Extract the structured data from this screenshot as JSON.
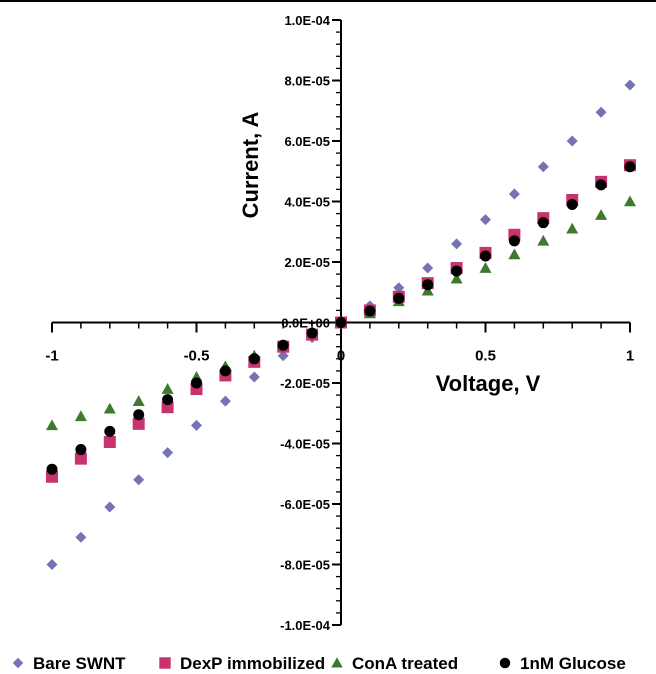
{
  "chart_data": {
    "type": "scatter",
    "xlabel": "Voltage, V",
    "ylabel": "Current, A",
    "xlim": [
      -1,
      1
    ],
    "ylim": [
      -0.0001,
      0.0001
    ],
    "x_tick_labels": [
      "-1",
      "-0.5",
      "0",
      "0.5",
      "1"
    ],
    "y_tick_labels": [
      "1.0E-04",
      "8.0E-05",
      "6.0E-05",
      "4.0E-05",
      "2.0E-05",
      "0.0E+00",
      "-2.0E-05",
      "-4.0E-05",
      "-6.0E-05",
      "-8.0E-05",
      "-1.0E-04"
    ],
    "legend_position": "bottom",
    "x": [
      -1,
      -0.9,
      -0.8,
      -0.7,
      -0.6,
      -0.5,
      -0.4,
      -0.3,
      -0.2,
      -0.1,
      0,
      0.1,
      0.2,
      0.3,
      0.4,
      0.5,
      0.6,
      0.7,
      0.8,
      0.9,
      1
    ],
    "series": [
      {
        "name": "Bare SWNT",
        "marker": "diamond",
        "color": "#7474b4",
        "values": [
          -8e-05,
          -7.1e-05,
          -6.1e-05,
          -5.2e-05,
          -4.3e-05,
          -3.4e-05,
          -2.6e-05,
          -1.8e-05,
          -1.1e-05,
          -5e-06,
          0,
          5.5e-06,
          1.15e-05,
          1.8e-05,
          2.6e-05,
          3.4e-05,
          4.25e-05,
          5.15e-05,
          6e-05,
          6.95e-05,
          7.85e-05
        ]
      },
      {
        "name": "DexP immobilized",
        "marker": "square",
        "color": "#c8326e",
        "values": [
          -5.1e-05,
          -4.5e-05,
          -3.95e-05,
          -3.35e-05,
          -2.8e-05,
          -2.2e-05,
          -1.75e-05,
          -1.3e-05,
          -8e-06,
          -4e-06,
          0,
          4e-06,
          8.5e-06,
          1.3e-05,
          1.8e-05,
          2.3e-05,
          2.9e-05,
          3.45e-05,
          4.05e-05,
          4.65e-05,
          5.2e-05
        ]
      },
      {
        "name": "ConA treated",
        "marker": "triangle",
        "color": "#3e7a2e",
        "values": [
          -3.4e-05,
          -3.1e-05,
          -2.85e-05,
          -2.6e-05,
          -2.2e-05,
          -1.8e-05,
          -1.45e-05,
          -1.1e-05,
          -7.5e-06,
          -3e-06,
          0,
          3e-06,
          7e-06,
          1.05e-05,
          1.45e-05,
          1.8e-05,
          2.25e-05,
          2.7e-05,
          3.1e-05,
          3.55e-05,
          4e-05
        ]
      },
      {
        "name": "1nM Glucose",
        "marker": "circle",
        "color": "#000000",
        "values": [
          -4.85e-05,
          -4.2e-05,
          -3.6e-05,
          -3.05e-05,
          -2.55e-05,
          -2e-05,
          -1.6e-05,
          -1.2e-05,
          -7.5e-06,
          -3.5e-06,
          0,
          3.8e-06,
          8e-06,
          1.25e-05,
          1.7e-05,
          2.2e-05,
          2.7e-05,
          3.3e-05,
          3.9e-05,
          4.55e-05,
          5.15e-05
        ]
      }
    ]
  }
}
